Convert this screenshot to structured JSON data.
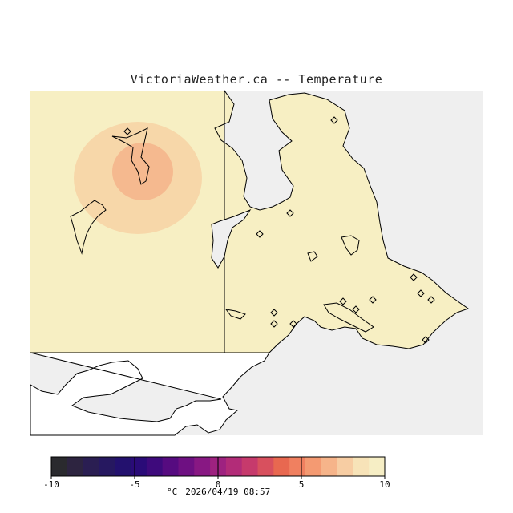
{
  "title": "VictoriaWeather.ca -- Temperature",
  "legend": {
    "unit": "°C",
    "timestamp": "2026/04/19 08:57",
    "min": -10,
    "max": 10,
    "tick_labels": [
      "-10",
      "-5",
      "0",
      "5",
      "10"
    ],
    "tick_values": [
      -10,
      -5,
      0,
      5,
      10
    ],
    "colors": [
      "#2a2a2e",
      "#2d2440",
      "#2a1e52",
      "#261860",
      "#23116e",
      "#2a0b78",
      "#3e0a7c",
      "#560b80",
      "#6e1082",
      "#881883",
      "#9e2280",
      "#b22c78",
      "#c63a6c",
      "#d8505e",
      "#e86850",
      "#f08060",
      "#f49a72",
      "#f6b48a",
      "#f7cda3",
      "#f7e3b8",
      "#f6eec5"
    ]
  },
  "field": {
    "base_color": "#f7efc3",
    "ocean_color": "#efefef",
    "warm_outer_color": "#f7d7a9",
    "warm_inner_color": "#f5b98f"
  }
}
